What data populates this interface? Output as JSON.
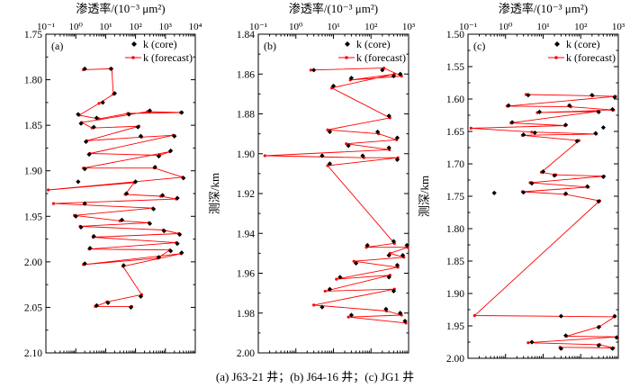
{
  "figure": {
    "caption": "(a) J63-21 井；(b) J64-16 井；(c) JG1 井",
    "colors": {
      "core": "#000000",
      "forecast": "#ff0000"
    }
  },
  "chart_data": [
    {
      "type": "scatter",
      "panel_label": "(a)",
      "xlabel": "渗透率/(10⁻³ μm²)",
      "ylabel": "",
      "xscale": "log",
      "xlim": [
        0.1,
        10000
      ],
      "xticks": [
        0.1,
        1,
        10,
        100,
        1000,
        10000
      ],
      "xtick_labels": [
        "10⁻¹",
        "10⁰",
        "10¹",
        "10²",
        "10³",
        "10⁴"
      ],
      "ylim": [
        1.75,
        2.1
      ],
      "yinverted": true,
      "yticks": [
        1.75,
        1.8,
        1.85,
        1.9,
        1.95,
        2.0,
        2.05,
        2.1
      ],
      "ytick_labels": [
        "1.75",
        "1.80",
        "1.85",
        "1.90",
        "1.95",
        "2.00",
        "2.05",
        "2.10"
      ],
      "legend": {
        "position": "top-right",
        "core_label": "k (core)",
        "forecast_label": "k (forecast)"
      },
      "series": [
        {
          "name": "k (core)",
          "marker": "diamond",
          "points": [
            [
              2,
              1.788
            ],
            [
              15,
              1.788
            ],
            [
              20,
              1.815
            ],
            [
              8,
              1.825
            ],
            [
              1.2,
              1.838
            ],
            [
              5,
              1.842
            ],
            [
              60,
              1.838
            ],
            [
              3500,
              1.836
            ],
            [
              300,
              1.834
            ],
            [
              1.5,
              1.848
            ],
            [
              4,
              1.852
            ],
            [
              120,
              1.852
            ],
            [
              2.2,
              1.868
            ],
            [
              150,
              1.862
            ],
            [
              2000,
              1.862
            ],
            [
              2.8,
              1.882
            ],
            [
              600,
              1.884
            ],
            [
              1500,
              1.878
            ],
            [
              2,
              1.898
            ],
            [
              450,
              1.896
            ],
            [
              4000,
              1.908
            ],
            [
              1.2,
              1.912
            ],
            [
              100,
              1.912
            ],
            [
              50,
              1.925
            ],
            [
              800,
              1.927
            ],
            [
              2500,
              1.93
            ],
            [
              2,
              1.936
            ],
            [
              400,
              1.942
            ],
            [
              1,
              1.95
            ],
            [
              35,
              1.954
            ],
            [
              300,
              1.958
            ],
            [
              1.5,
              1.962
            ],
            [
              900,
              1.966
            ],
            [
              3000,
              1.97
            ],
            [
              4,
              1.972
            ],
            [
              2500,
              1.98
            ],
            [
              3,
              1.985
            ],
            [
              1500,
              1.988
            ],
            [
              600,
              1.995
            ],
            [
              2,
              2.002
            ],
            [
              3500,
              1.99
            ],
            [
              40,
              2.004
            ],
            [
              150,
              2.038
            ],
            [
              12,
              2.045
            ],
            [
              5,
              2.048
            ],
            [
              70,
              2.05
            ]
          ]
        },
        {
          "name": "k (forecast)",
          "marker": "dot",
          "points": [
            [
              1.8,
              1.789
            ],
            [
              16,
              1.788
            ],
            [
              18,
              1.816
            ],
            [
              6,
              1.826
            ],
            [
              1.3,
              1.839
            ],
            [
              6,
              1.843
            ],
            [
              55,
              1.837
            ],
            [
              3200,
              1.836
            ],
            [
              250,
              1.835
            ],
            [
              1.6,
              1.847
            ],
            [
              3.5,
              1.853
            ],
            [
              130,
              1.851
            ],
            [
              2.4,
              1.867
            ],
            [
              160,
              1.863
            ],
            [
              1800,
              1.861
            ],
            [
              3,
              1.881
            ],
            [
              650,
              1.883
            ],
            [
              1400,
              1.879
            ],
            [
              1.8,
              1.897
            ],
            [
              420,
              1.897
            ],
            [
              3800,
              1.907
            ],
            [
              0.12,
              1.921
            ],
            [
              90,
              1.913
            ],
            [
              45,
              1.926
            ],
            [
              700,
              1.928
            ],
            [
              2300,
              1.931
            ],
            [
              0.18,
              1.936
            ],
            [
              380,
              1.941
            ],
            [
              0.9,
              1.949
            ],
            [
              30,
              1.955
            ],
            [
              280,
              1.957
            ],
            [
              1.4,
              1.961
            ],
            [
              850,
              1.965
            ],
            [
              2800,
              1.969
            ],
            [
              3.8,
              1.973
            ],
            [
              2300,
              1.979
            ],
            [
              2.8,
              1.986
            ],
            [
              1400,
              1.987
            ],
            [
              550,
              1.996
            ],
            [
              1.8,
              2.003
            ],
            [
              3300,
              1.991
            ],
            [
              38,
              2.005
            ],
            [
              160,
              2.036
            ],
            [
              11,
              2.044
            ],
            [
              4.5,
              2.049
            ],
            [
              75,
              2.049
            ]
          ]
        }
      ]
    },
    {
      "type": "scatter",
      "panel_label": "(b)",
      "xlabel": "渗透率/(10⁻³ μm²)",
      "ylabel": "测深/km",
      "xscale": "log",
      "xlim": [
        0.1,
        1000
      ],
      "xticks": [
        0.1,
        1,
        10,
        100,
        1000
      ],
      "xtick_labels": [
        "10⁻¹",
        "10⁰",
        "10¹",
        "10²",
        "10³"
      ],
      "ylim": [
        1.84,
        2.0
      ],
      "yinverted": true,
      "yticks": [
        1.84,
        1.86,
        1.88,
        1.9,
        1.92,
        1.94,
        1.96,
        1.98,
        2.0
      ],
      "ytick_labels": [
        "1.84",
        "1.86",
        "1.88",
        "1.90",
        "1.92",
        "1.94",
        "1.96",
        "1.98",
        "2.00"
      ],
      "legend": {
        "position": "top-right",
        "core_label": "k (core)",
        "forecast_label": "k (forecast)"
      },
      "series": [
        {
          "name": "k (core)",
          "marker": "diamond",
          "points": [
            [
              3,
              1.858
            ],
            [
              200,
              1.858
            ],
            [
              600,
              1.86
            ],
            [
              30,
              1.862
            ],
            [
              400,
              1.861
            ],
            [
              10,
              1.866
            ],
            [
              300,
              1.881
            ],
            [
              8,
              1.889
            ],
            [
              150,
              1.889
            ],
            [
              500,
              1.892
            ],
            [
              25,
              1.896
            ],
            [
              300,
              1.897
            ],
            [
              5,
              1.901
            ],
            [
              60,
              1.901
            ],
            [
              500,
              1.903
            ],
            [
              8,
              1.905
            ],
            [
              400,
              1.944
            ],
            [
              80,
              1.946
            ],
            [
              900,
              1.946
            ],
            [
              300,
              1.951
            ],
            [
              700,
              1.951
            ],
            [
              40,
              1.955
            ],
            [
              500,
              1.956
            ],
            [
              15,
              1.962
            ],
            [
              300,
              1.962
            ],
            [
              8,
              1.968
            ],
            [
              400,
              1.969
            ],
            [
              5,
              1.977
            ],
            [
              250,
              1.978
            ],
            [
              600,
              1.98
            ],
            [
              30,
              1.981
            ],
            [
              800,
              1.984
            ]
          ]
        },
        {
          "name": "k (forecast)",
          "marker": "dot",
          "points": [
            [
              2.5,
              1.858
            ],
            [
              220,
              1.857
            ],
            [
              650,
              1.861
            ],
            [
              28,
              1.863
            ],
            [
              420,
              1.86
            ],
            [
              9,
              1.867
            ],
            [
              320,
              1.882
            ],
            [
              7,
              1.888
            ],
            [
              160,
              1.89
            ],
            [
              480,
              1.893
            ],
            [
              22,
              1.895
            ],
            [
              310,
              1.898
            ],
            [
              0.15,
              1.901
            ],
            [
              65,
              1.902
            ],
            [
              520,
              1.902
            ],
            [
              7,
              1.906
            ],
            [
              420,
              1.945
            ],
            [
              75,
              1.947
            ],
            [
              950,
              1.947
            ],
            [
              320,
              1.95
            ],
            [
              750,
              1.952
            ],
            [
              35,
              1.954
            ],
            [
              520,
              1.957
            ],
            [
              12,
              1.963
            ],
            [
              320,
              1.961
            ],
            [
              6,
              1.969
            ],
            [
              420,
              1.968
            ],
            [
              3,
              1.976
            ],
            [
              260,
              1.979
            ],
            [
              650,
              1.981
            ],
            [
              25,
              1.982
            ],
            [
              850,
              1.985
            ]
          ]
        }
      ]
    },
    {
      "type": "scatter",
      "panel_label": "(c)",
      "xlabel": "渗透率/(10⁻³ μm²)",
      "ylabel": "测深/km",
      "xscale": "log",
      "xlim": [
        0.1,
        1000
      ],
      "xticks": [
        0.1,
        1,
        10,
        100,
        1000
      ],
      "xtick_labels": [
        "10⁻¹",
        "10⁰",
        "10¹",
        "10²",
        "10³"
      ],
      "ylim": [
        1.5,
        2.0
      ],
      "yinverted": true,
      "yticks": [
        1.5,
        1.55,
        1.6,
        1.65,
        1.7,
        1.75,
        1.8,
        1.85,
        1.9,
        1.95,
        2.0
      ],
      "ytick_labels": [
        "1.50",
        "1.55",
        "1.60",
        "1.65",
        "1.70",
        "1.75",
        "1.80",
        "1.85",
        "1.90",
        "1.95",
        "2.00"
      ],
      "legend": {
        "position": "top-right",
        "core_label": "k (core)",
        "forecast_label": "k (forecast)"
      },
      "series": [
        {
          "name": "k (core)",
          "marker": "diamond",
          "points": [
            [
              4,
              1.594
            ],
            [
              200,
              1.594
            ],
            [
              800,
              1.597
            ],
            [
              1.2,
              1.61
            ],
            [
              50,
              1.61
            ],
            [
              700,
              1.616
            ],
            [
              8,
              1.62
            ],
            [
              300,
              1.62
            ],
            [
              1.5,
              1.636
            ],
            [
              40,
              1.64
            ],
            [
              400,
              1.644
            ],
            [
              6,
              1.652
            ],
            [
              250,
              1.653
            ],
            [
              3,
              1.655
            ],
            [
              80,
              1.665
            ],
            [
              10,
              1.712
            ],
            [
              20,
              1.718
            ],
            [
              400,
              1.72
            ],
            [
              5,
              1.73
            ],
            [
              150,
              1.735
            ],
            [
              3,
              1.744
            ],
            [
              40,
              1.746
            ],
            [
              0.5,
              1.745
            ],
            [
              300,
              1.758
            ],
            [
              800,
              1.935
            ],
            [
              30,
              1.935
            ],
            [
              300,
              1.952
            ],
            [
              40,
              1.965
            ],
            [
              900,
              1.968
            ],
            [
              5,
              1.975
            ],
            [
              300,
              1.98
            ],
            [
              700,
              1.985
            ],
            [
              30,
              1.985
            ]
          ]
        },
        {
          "name": "k (forecast)",
          "marker": "dot",
          "points": [
            [
              3.5,
              1.593
            ],
            [
              210,
              1.595
            ],
            [
              850,
              1.596
            ],
            [
              1.1,
              1.611
            ],
            [
              55,
              1.612
            ],
            [
              750,
              1.617
            ],
            [
              7,
              1.621
            ],
            [
              280,
              1.619
            ],
            [
              1.4,
              1.637
            ],
            [
              38,
              1.641
            ],
            [
              0.12,
              1.645
            ],
            [
              5,
              1.651
            ],
            [
              260,
              1.654
            ],
            [
              2.8,
              1.656
            ],
            [
              90,
              1.664
            ],
            [
              9,
              1.713
            ],
            [
              22,
              1.717
            ],
            [
              420,
              1.719
            ],
            [
              4.5,
              1.729
            ],
            [
              160,
              1.736
            ],
            [
              2.8,
              1.743
            ],
            [
              38,
              1.747
            ],
            [
              320,
              1.757
            ],
            [
              0.15,
              1.934
            ],
            [
              800,
              1.936
            ],
            [
              320,
              1.951
            ],
            [
              42,
              1.966
            ],
            [
              950,
              1.967
            ],
            [
              4,
              1.976
            ],
            [
              320,
              1.979
            ],
            [
              750,
              1.984
            ],
            [
              28,
              1.983
            ]
          ]
        }
      ]
    }
  ]
}
